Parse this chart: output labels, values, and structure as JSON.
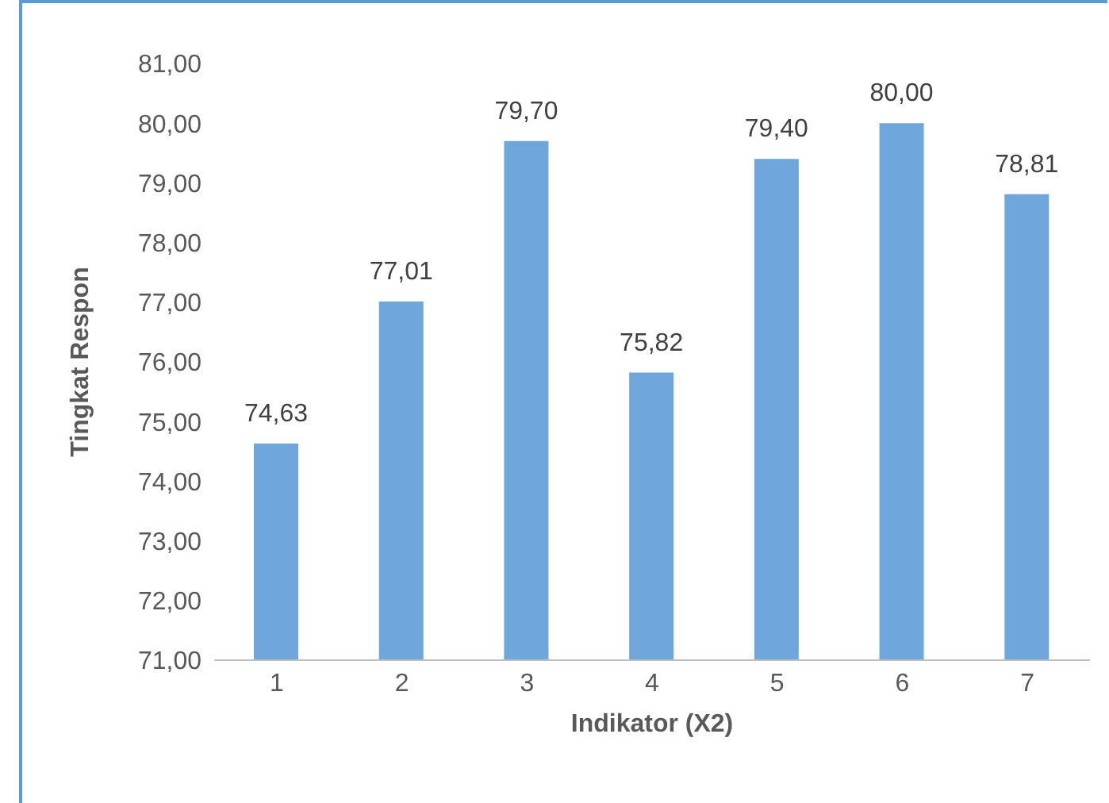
{
  "chart_data": {
    "type": "bar",
    "xlabel": "Indikator (X2)",
    "ylabel": "Tingkat Respon",
    "categories": [
      "1",
      "2",
      "3",
      "4",
      "5",
      "6",
      "7"
    ],
    "values": [
      74.63,
      77.01,
      79.7,
      75.82,
      79.4,
      80.0,
      78.81
    ],
    "value_labels": [
      "74,63",
      "77,01",
      "79,70",
      "75,82",
      "79,40",
      "80,00",
      "78,81"
    ],
    "color": "#6fa6dc",
    "ylim": [
      71,
      81
    ],
    "yticks": [
      {
        "value": 71,
        "label": "71,00"
      },
      {
        "value": 72,
        "label": "72,00"
      },
      {
        "value": 73,
        "label": "73,00"
      },
      {
        "value": 74,
        "label": "74,00"
      },
      {
        "value": 75,
        "label": "75,00"
      },
      {
        "value": 76,
        "label": "76,00"
      },
      {
        "value": 77,
        "label": "77,00"
      },
      {
        "value": 78,
        "label": "78,00"
      },
      {
        "value": 79,
        "label": "79,00"
      },
      {
        "value": 80,
        "label": "80,00"
      },
      {
        "value": 81,
        "label": "81,00"
      }
    ],
    "grid": false,
    "legend": false
  }
}
